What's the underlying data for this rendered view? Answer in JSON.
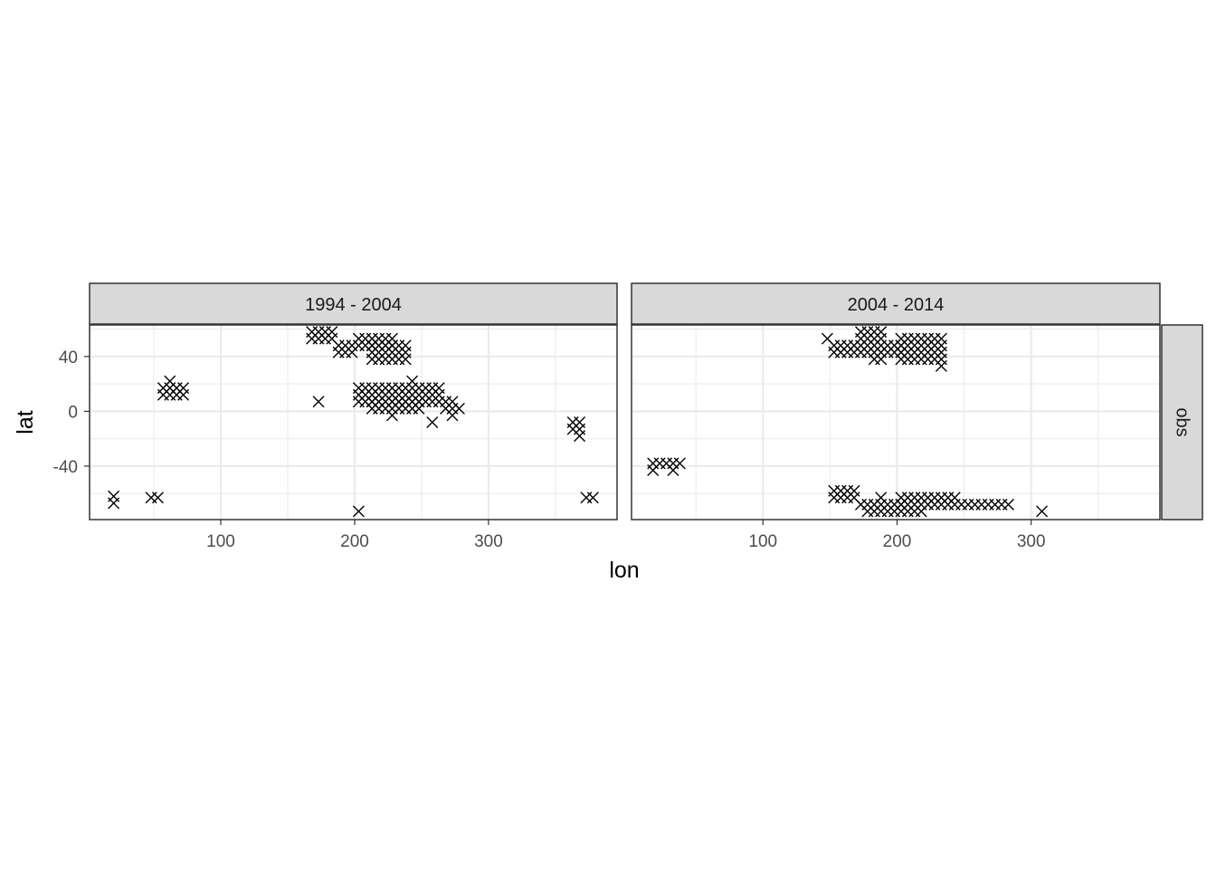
{
  "chart_data": {
    "type": "scatter",
    "marker": "x",
    "xlabel": "lon",
    "ylabel": "lat",
    "xlim": [
      2,
      396
    ],
    "ylim": [
      -79,
      63
    ],
    "x_ticks": [
      100,
      200,
      300
    ],
    "x_tick_labels": [
      "100",
      "200",
      "300"
    ],
    "y_ticks": [
      40,
      0,
      -40
    ],
    "y_tick_labels": [
      "40",
      "0",
      "-40"
    ],
    "row_strip": "obs",
    "grid": true,
    "panels": [
      {
        "label": "1994 - 2004",
        "groups": [
          {
            "lon": [
              20,
              20
            ],
            "lat": [
              -62,
              -67
            ]
          },
          {
            "lon": [
              48,
              53
            ],
            "lat": [
              -63,
              -63
            ]
          },
          {
            "lon": [
              57,
              72
            ],
            "lat": [
              12,
              17
            ],
            "xstep": 5,
            "ystep": 5
          },
          {
            "lon": [
              62,
              62
            ],
            "lat": [
              22,
              22
            ]
          },
          {
            "lon": [
              168,
              183
            ],
            "lat": [
              53,
              58
            ],
            "xstep": 5,
            "ystep": 5
          },
          {
            "lon": [
              173,
              173
            ],
            "lat": [
              7,
              7
            ]
          },
          {
            "lon": [
              188,
              198
            ],
            "lat": [
              43,
              48
            ],
            "xstep": 5,
            "ystep": 5
          },
          {
            "lon": [
              203,
              228
            ],
            "lat": [
              48,
              53
            ],
            "xstep": 5,
            "ystep": 5
          },
          {
            "lon": [
              213,
              238
            ],
            "lat": [
              38,
              48
            ],
            "xstep": 5,
            "ystep": 5
          },
          {
            "lon": [
              203,
              263
            ],
            "lat": [
              7,
              17
            ],
            "xstep": 5,
            "ystep": 5
          },
          {
            "lon": [
              213,
              248
            ],
            "lat": [
              2,
              7
            ],
            "xstep": 5,
            "ystep": 5
          },
          {
            "lon": [
              243,
              243
            ],
            "lat": [
              22,
              22
            ]
          },
          {
            "lon": [
              228,
              228
            ],
            "lat": [
              -3,
              -3
            ]
          },
          {
            "lon": [
              258,
              258
            ],
            "lat": [
              -8,
              -8
            ]
          },
          {
            "lon": [
              268,
              273
            ],
            "lat": [
              2,
              7
            ],
            "xstep": 5,
            "ystep": 5
          },
          {
            "lon": [
              273,
              273
            ],
            "lat": [
              -3,
              -3
            ]
          },
          {
            "lon": [
              278,
              278
            ],
            "lat": [
              2,
              2
            ]
          },
          {
            "lon": [
              203,
              203
            ],
            "lat": [
              -73,
              -73
            ]
          },
          {
            "lon": [
              363,
              368
            ],
            "lat": [
              -13,
              -8
            ],
            "xstep": 5,
            "ystep": 5
          },
          {
            "lon": [
              368,
              368
            ],
            "lat": [
              -18,
              -18
            ]
          },
          {
            "lon": [
              373,
              378
            ],
            "lat": [
              -63,
              -63
            ],
            "xstep": 5,
            "ystep": 5
          }
        ]
      },
      {
        "label": "2004 - 2014",
        "groups": [
          {
            "lon": [
              18,
              38
            ],
            "lat": [
              -38,
              -38
            ],
            "xstep": 5,
            "ystep": 5
          },
          {
            "lon": [
              18,
              18
            ],
            "lat": [
              -43,
              -43
            ]
          },
          {
            "lon": [
              33,
              33
            ],
            "lat": [
              -43,
              -43
            ]
          },
          {
            "lon": [
              148,
              148
            ],
            "lat": [
              53,
              53
            ]
          },
          {
            "lon": [
              153,
              203
            ],
            "lat": [
              43,
              48
            ],
            "xstep": 5,
            "ystep": 5
          },
          {
            "lon": [
              173,
              188
            ],
            "lat": [
              53,
              58
            ],
            "xstep": 5,
            "ystep": 5
          },
          {
            "lon": [
              183,
              188
            ],
            "lat": [
              38,
              38
            ],
            "xstep": 5,
            "ystep": 5
          },
          {
            "lon": [
              203,
              233
            ],
            "lat": [
              38,
              53
            ],
            "xstep": 5,
            "ystep": 5
          },
          {
            "lon": [
              233,
              233
            ],
            "lat": [
              33,
              33
            ]
          },
          {
            "lon": [
              153,
              168
            ],
            "lat": [
              -58,
              -63
            ],
            "xstep": 5,
            "ystep": 5
          },
          {
            "lon": [
              173,
              203
            ],
            "lat": [
              -68,
              -68
            ],
            "xstep": 5,
            "ystep": 5
          },
          {
            "lon": [
              178,
              198
            ],
            "lat": [
              -73,
              -73
            ],
            "xstep": 5,
            "ystep": 5
          },
          {
            "lon": [
              188,
              188
            ],
            "lat": [
              -63,
              -63
            ]
          },
          {
            "lon": [
              203,
              243
            ],
            "lat": [
              -63,
              -68
            ],
            "xstep": 5,
            "ystep": 5
          },
          {
            "lon": [
              203,
              218
            ],
            "lat": [
              -73,
              -73
            ],
            "xstep": 5,
            "ystep": 5
          },
          {
            "lon": [
              248,
              283
            ],
            "lat": [
              -68,
              -68
            ],
            "xstep": 5,
            "ystep": 5
          },
          {
            "lon": [
              308,
              308
            ],
            "lat": [
              -73,
              -73
            ]
          }
        ]
      }
    ]
  }
}
